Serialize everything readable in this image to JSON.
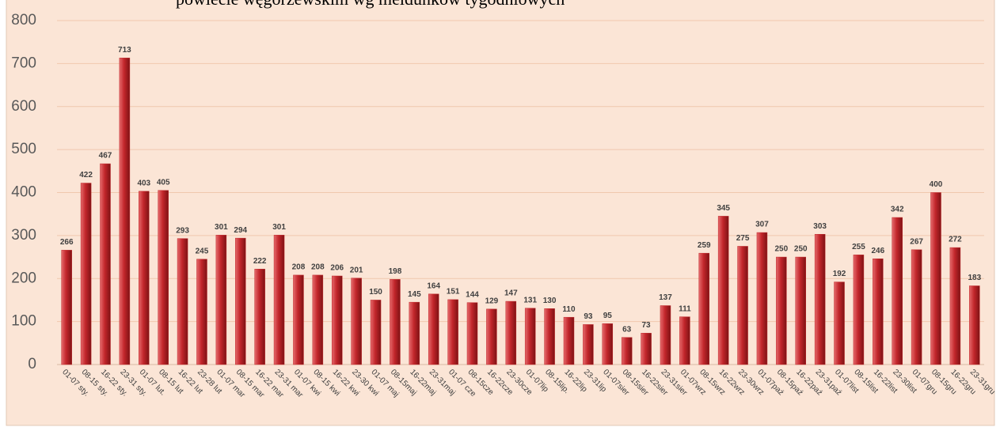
{
  "chart_data": {
    "type": "bar",
    "title": "powiecie węgorzewskim wg meldunków tygodniowych",
    "categories": [
      "01-07 sty.",
      "08-15 sty.",
      "16-22 sty.",
      "23-31 sty.",
      "01-07 lut.",
      "08-15 lut",
      "16-22 lut",
      "23-28 lut",
      "01-07 mar",
      "08-15 mar",
      "16-22 mar",
      "23-31 mar",
      "01-07 kwi",
      "08-15 kwi",
      "16-22 kwi",
      "23-30 kwi",
      "01-07 maj",
      "08-15maj",
      "16-22maj",
      "23-31maj",
      "01-07 cze",
      "08-15cze",
      "16-22cze",
      "23-30cze",
      "01-07lip",
      "08-15lip.",
      "16-22lip",
      "23-31lip",
      "01-07sier",
      "08-15sier",
      "16-22sier",
      "23-31sier",
      "01-07wrz",
      "08-15wrz",
      "16-22wrz",
      "23-30wrz",
      "01-07paź",
      "08-15paź",
      "16-22paź",
      "23-31paź",
      "01-07list",
      "08-15list",
      "16-22list",
      "23-30list",
      "01-07gru",
      "08-15gru",
      "16-22gru",
      "23-31gru"
    ],
    "values": [
      266,
      422,
      467,
      713,
      403,
      405,
      293,
      245,
      301,
      294,
      222,
      301,
      208,
      208,
      206,
      201,
      150,
      198,
      145,
      164,
      151,
      144,
      129,
      147,
      131,
      130,
      110,
      93,
      95,
      63,
      73,
      137,
      111,
      259,
      345,
      275,
      307,
      250,
      250,
      303,
      192,
      255,
      246,
      342,
      267,
      400,
      272,
      183
    ],
    "color": "#c0282c",
    "ylim": [
      0,
      800
    ],
    "yticks": [
      0,
      100,
      200,
      300,
      400,
      500,
      600,
      700,
      800
    ],
    "grid": true
  }
}
